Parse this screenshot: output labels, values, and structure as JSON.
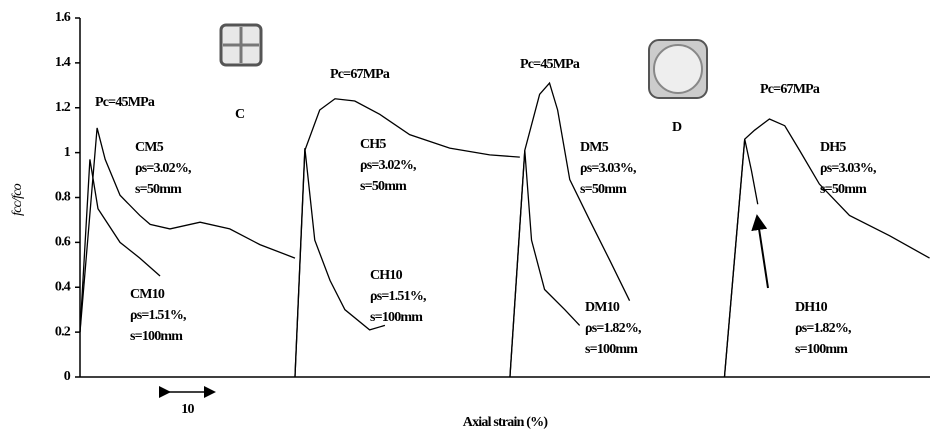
{
  "chart_data": {
    "type": "line",
    "y_label": "fcc/fco",
    "x_label": "Axial strain (%)",
    "xlim": [
      0,
      189
    ],
    "ylim": [
      0,
      1.6
    ],
    "yticks": [
      0,
      0.2,
      0.4,
      0.6,
      0.8,
      1,
      1.2,
      1.4,
      1.6
    ],
    "scale_bar": {
      "length": 10,
      "label": "10"
    },
    "annotations": [
      "Pc=45MPa",
      "C",
      "Pc=67MPa",
      "Pc=45MPa",
      "D",
      "Pc=67MPa"
    ],
    "series": [
      {
        "name": "CM5",
        "details": [
          "ρs=3.02%,",
          "s=50mm"
        ],
        "color": "#000000",
        "x": [
          0,
          3.8,
          5.6,
          8.9,
          13.3,
          15.6,
          20,
          26.7,
          33.3,
          40,
          47.8
        ],
        "values": [
          0.2,
          1.11,
          0.97,
          0.81,
          0.72,
          0.68,
          0.66,
          0.69,
          0.66,
          0.59,
          0.53
        ]
      },
      {
        "name": "CM10",
        "details": [
          "ρs=1.51%,",
          "s=100mm"
        ],
        "color": "#000000",
        "x": [
          0,
          2.2,
          4,
          8.9,
          13.3,
          17.8
        ],
        "values": [
          0.2,
          0.97,
          0.75,
          0.6,
          0.53,
          0.45
        ]
      },
      {
        "name": "CH5",
        "details": [
          "ρs=3.02%,",
          "s=50mm"
        ],
        "color": "#000000",
        "x": [
          47.8,
          50,
          53.3,
          56.7,
          61.1,
          66.7,
          73.3,
          82.2,
          91.1,
          97.8
        ],
        "values": [
          0,
          1.01,
          1.19,
          1.24,
          1.23,
          1.17,
          1.08,
          1.02,
          0.99,
          0.98
        ]
      },
      {
        "name": "CH10",
        "details": [
          "ρs=1.51%,",
          "s=100mm"
        ],
        "color": "#000000",
        "x": [
          47.8,
          50,
          52.2,
          55.6,
          58.9,
          64.4,
          67.8
        ],
        "values": [
          0,
          1.02,
          0.61,
          0.43,
          0.3,
          0.21,
          0.23
        ]
      },
      {
        "name": "DM5",
        "details": [
          "ρs=3.03%,",
          "s=50mm"
        ],
        "color": "#000000",
        "x": [
          95.6,
          98.9,
          102.2,
          104.4,
          106.2,
          108.9,
          113.3,
          117.8,
          122.2
        ],
        "values": [
          0,
          1.01,
          1.26,
          1.31,
          1.19,
          0.88,
          0.7,
          0.52,
          0.34
        ]
      },
      {
        "name": "DM10",
        "details": [
          "ρs=1.82%,",
          "s=100mm"
        ],
        "color": "#000000",
        "x": [
          95.6,
          98.9,
          100.4,
          103.3,
          107.8,
          111.1
        ],
        "values": [
          0,
          1.01,
          0.61,
          0.39,
          0.3,
          0.23
        ]
      },
      {
        "name": "DH5",
        "details": [
          "ρs=3.03%,",
          "s=50mm"
        ],
        "color": "#000000",
        "x": [
          143.3,
          147.8,
          150,
          153.3,
          156.7,
          160,
          164.4,
          171.1,
          180,
          188.9
        ],
        "values": [
          0,
          1.06,
          1.1,
          1.15,
          1.12,
          1.01,
          0.86,
          0.72,
          0.63,
          0.53
        ]
      },
      {
        "name": "DH10",
        "details": [
          "ρs=1.82%,",
          "s=100mm"
        ],
        "color": "#000000",
        "x": [
          143.3,
          147.8,
          149.3,
          150.7
        ],
        "values": [
          0,
          1.06,
          0.92,
          0.77
        ]
      }
    ]
  }
}
